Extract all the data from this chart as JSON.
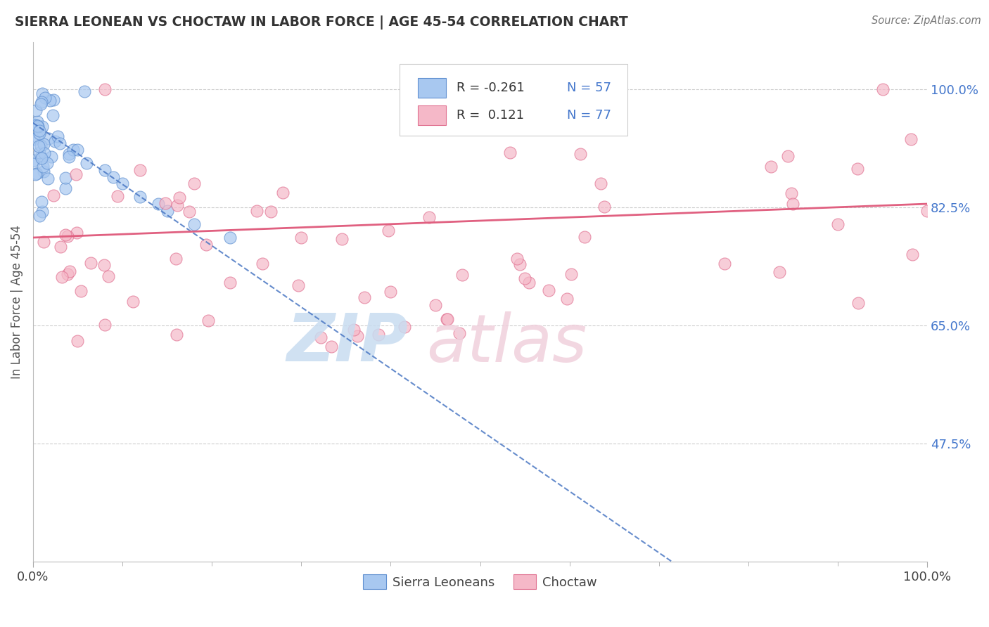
{
  "title": "SIERRA LEONEAN VS CHOCTAW IN LABOR FORCE | AGE 45-54 CORRELATION CHART",
  "source_text": "Source: ZipAtlas.com",
  "ylabel": "In Labor Force | Age 45-54",
  "xlim": [
    0,
    100
  ],
  "ylim": [
    30,
    107
  ],
  "yticks": [
    47.5,
    65.0,
    82.5,
    100.0
  ],
  "ytick_labels": [
    "47.5%",
    "65.0%",
    "82.5%",
    "100.0%"
  ],
  "blue_color": "#A8C8F0",
  "pink_color": "#F5B8C8",
  "blue_edge_color": "#6090D0",
  "pink_edge_color": "#E07090",
  "blue_line_color": "#4070C0",
  "pink_line_color": "#E06080",
  "R_blue": -0.261,
  "N_blue": 57,
  "R_pink": 0.121,
  "N_pink": 77,
  "blue_line_x": [
    0,
    100
  ],
  "blue_line_y": [
    95.0,
    4.0
  ],
  "pink_line_x": [
    0,
    100
  ],
  "pink_line_y": [
    78.0,
    83.0
  ],
  "background_color": "#FFFFFF",
  "grid_color": "#CCCCCC",
  "watermark_zip_color": "#C8DCF0",
  "watermark_atlas_color": "#F0D0DC"
}
